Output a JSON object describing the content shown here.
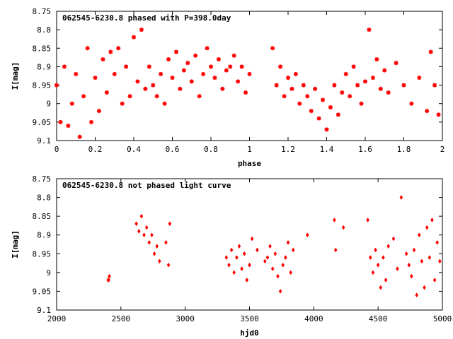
{
  "chart_data": [
    {
      "type": "scatter",
      "title": "062545-6230.8 phased with P=398.0day",
      "xlabel": "phase",
      "ylabel": "I[mag]",
      "xlim": [
        0,
        2
      ],
      "ylim": [
        9.1,
        8.75
      ],
      "y_inverted": true,
      "xticks": [
        "0",
        "0.2",
        "0.4",
        "0.6",
        "0.8",
        "1",
        "1.2",
        "1.4",
        "1.6",
        "1.8",
        "2"
      ],
      "yticks": [
        "8.75",
        "8.8",
        "8.85",
        "8.9",
        "8.95",
        "9",
        "9.05",
        "9.1"
      ],
      "grid": false,
      "marker": "star",
      "color": "#ff0000",
      "series": [
        {
          "x": [
            0.0,
            0.02,
            0.04,
            0.06,
            0.08,
            0.1,
            0.12,
            0.14,
            0.16,
            0.18,
            0.2,
            0.22,
            0.24,
            0.26,
            0.28,
            0.3,
            0.32,
            0.34,
            0.36,
            0.38,
            0.4,
            0.42,
            0.44,
            0.46,
            0.48,
            0.5,
            0.52,
            0.54,
            0.56,
            0.58,
            0.6,
            0.62,
            0.64,
            0.66,
            0.68,
            0.7,
            0.72,
            0.74,
            0.76,
            0.78,
            0.8,
            0.82,
            0.84,
            0.86,
            0.88,
            0.9,
            0.92,
            0.94,
            0.96,
            0.98,
            1.0,
            1.12,
            1.14,
            1.16,
            1.18,
            1.2,
            1.22,
            1.24,
            1.26,
            1.28,
            1.3,
            1.32,
            1.34,
            1.36,
            1.38,
            1.4,
            1.42,
            1.44,
            1.46,
            1.48,
            1.5,
            1.52,
            1.54,
            1.56,
            1.58,
            1.6,
            1.62,
            1.64,
            1.66,
            1.68,
            1.7,
            1.72,
            1.76,
            1.8,
            1.84,
            1.88,
            1.92,
            1.94,
            1.96,
            1.98
          ],
          "y": [
            8.95,
            9.05,
            8.9,
            9.06,
            9.0,
            8.92,
            9.09,
            8.98,
            8.85,
            9.05,
            8.93,
            9.02,
            8.88,
            8.97,
            8.86,
            8.92,
            8.85,
            9.0,
            8.9,
            8.98,
            8.82,
            8.94,
            8.8,
            8.96,
            8.9,
            8.95,
            8.98,
            8.92,
            9.0,
            8.88,
            8.93,
            8.86,
            8.96,
            8.91,
            8.89,
            8.94,
            8.87,
            8.98,
            8.92,
            8.85,
            8.9,
            8.93,
            8.88,
            8.96,
            8.91,
            8.9,
            8.87,
            8.94,
            8.9,
            8.97,
            8.92,
            8.85,
            8.95,
            8.9,
            8.98,
            8.93,
            8.96,
            8.92,
            9.0,
            8.95,
            8.98,
            9.02,
            8.96,
            9.04,
            8.99,
            9.07,
            9.01,
            8.95,
            9.03,
            8.97,
            8.92,
            8.98,
            8.9,
            8.95,
            9.0,
            8.94,
            8.8,
            8.93,
            8.88,
            8.96,
            8.91,
            8.97,
            8.89,
            8.95,
            9.0,
            8.93,
            9.02,
            8.86,
            8.95,
            9.03
          ]
        }
      ]
    },
    {
      "type": "scatter",
      "title": "062545-6230.8 not phased light curve",
      "xlabel": "hjd0",
      "ylabel": "I[mag]",
      "xlim": [
        2000,
        5000
      ],
      "ylim": [
        9.1,
        8.75
      ],
      "y_inverted": true,
      "xticks": [
        "2000",
        "2500",
        "3000",
        "3500",
        "4000",
        "4500",
        "5000"
      ],
      "yticks": [
        "8.75",
        "8.8",
        "8.85",
        "8.9",
        "8.95",
        "9",
        "9.05",
        "9.1"
      ],
      "grid": false,
      "marker": "diamond",
      "color": "#ff0000",
      "series": [
        {
          "x": [
            2400,
            2405,
            2410,
            2620,
            2640,
            2660,
            2680,
            2700,
            2720,
            2740,
            2760,
            2780,
            2800,
            2850,
            2870,
            2880,
            3320,
            3340,
            3360,
            3380,
            3400,
            3420,
            3440,
            3460,
            3480,
            3500,
            3520,
            3560,
            3620,
            3640,
            3660,
            3680,
            3700,
            3720,
            3740,
            3760,
            3780,
            3800,
            3820,
            3840,
            3950,
            4160,
            4170,
            4230,
            4420,
            4440,
            4460,
            4480,
            4500,
            4520,
            4540,
            4560,
            4580,
            4620,
            4650,
            4680,
            4720,
            4740,
            4760,
            4780,
            4800,
            4820,
            4840,
            4860,
            4880,
            4900,
            4920,
            4940,
            4960,
            4980
          ],
          "y": [
            9.02,
            9.02,
            9.01,
            8.87,
            8.89,
            8.85,
            8.9,
            8.88,
            8.92,
            8.9,
            8.95,
            8.93,
            8.97,
            8.92,
            8.98,
            8.87,
            8.96,
            8.98,
            8.94,
            9.0,
            8.96,
            8.93,
            8.99,
            8.95,
            9.02,
            8.98,
            8.91,
            8.94,
            8.97,
            8.96,
            8.93,
            8.99,
            8.95,
            9.01,
            9.05,
            8.98,
            8.96,
            8.92,
            9.0,
            8.94,
            8.9,
            8.86,
            8.94,
            8.88,
            8.86,
            8.96,
            9.0,
            8.94,
            8.98,
            9.04,
            8.96,
            9.02,
            8.93,
            8.91,
            8.99,
            8.8,
            8.95,
            8.98,
            9.01,
            8.94,
            9.06,
            8.9,
            8.97,
            9.04,
            8.88,
            8.96,
            8.86,
            9.02,
            8.92,
            8.97
          ]
        }
      ]
    }
  ]
}
